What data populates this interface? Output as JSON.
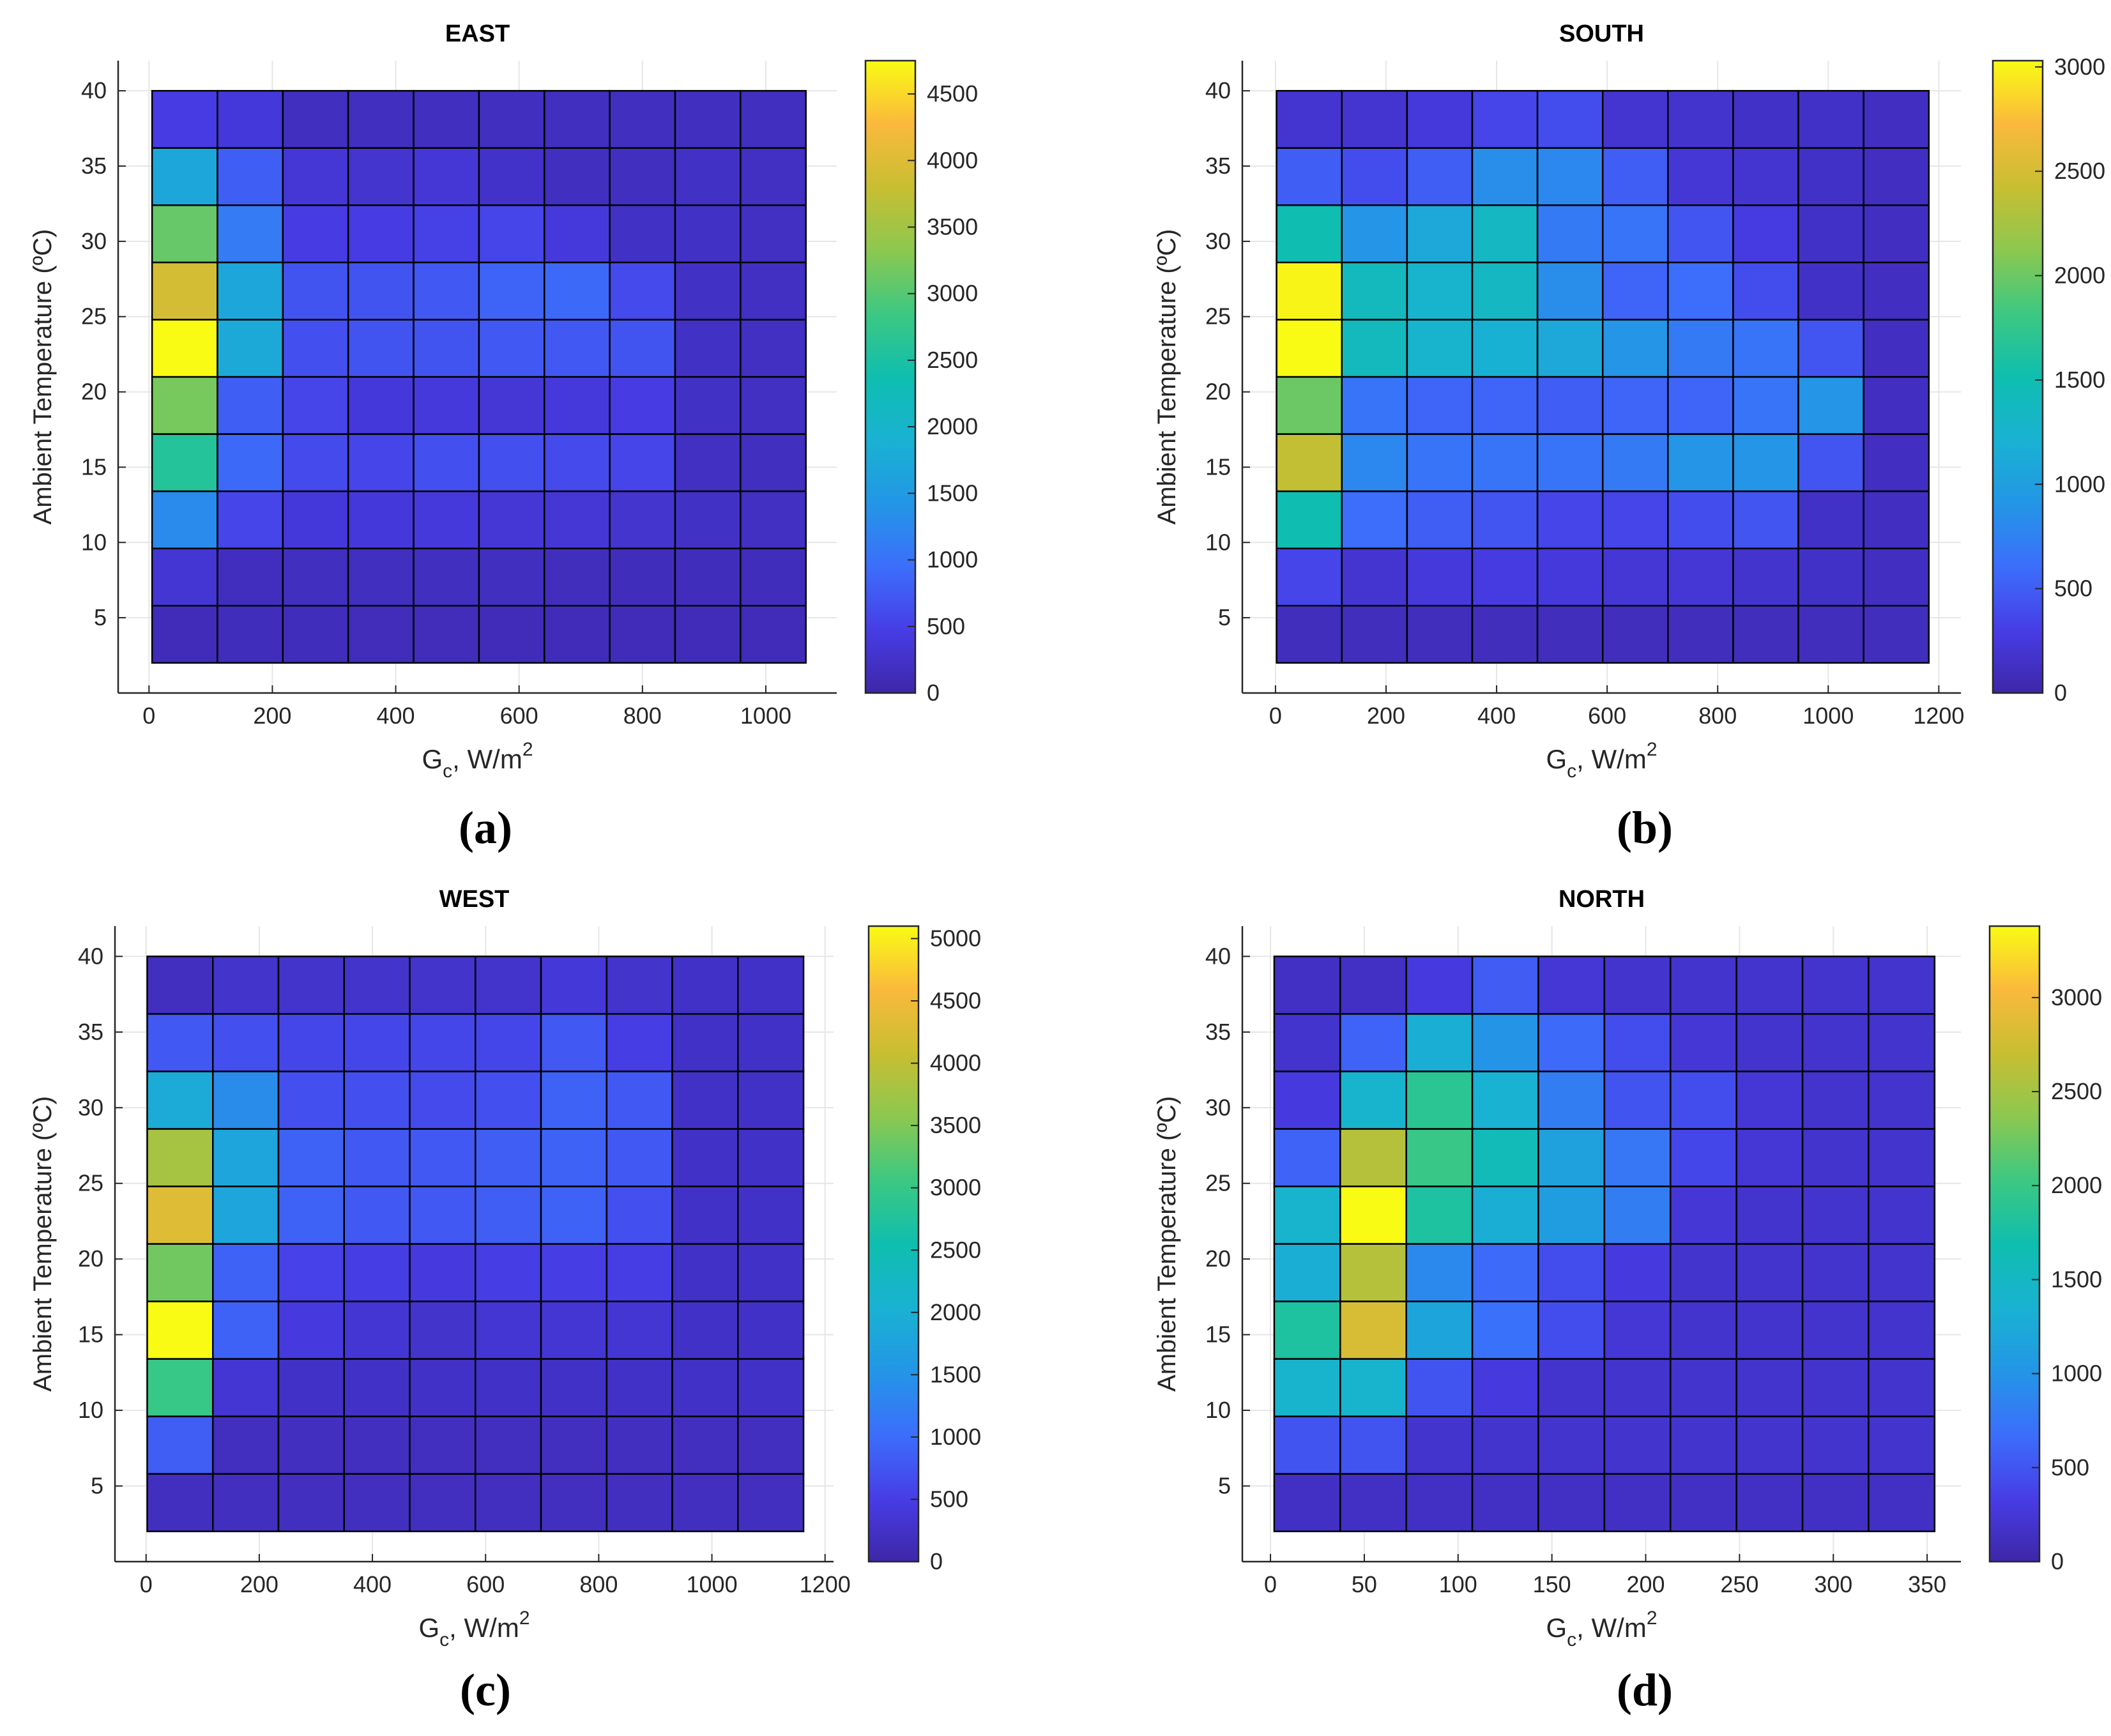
{
  "figure": {
    "panels": [
      "(a)",
      "(b)",
      "(c)",
      "(d)"
    ]
  },
  "chart_data": [
    {
      "type": "heatmap",
      "title": "EAST",
      "xlabel": "G_c, W/m^2",
      "xlabel_parts": {
        "main": "G",
        "sub": "c",
        "mid": ", W/m",
        "sup": "2"
      },
      "ylabel": "Ambient Temperature (ºC)",
      "x_edges": [
        5,
        111,
        217,
        323,
        429,
        535,
        641,
        747,
        853,
        959,
        1065
      ],
      "y_edges": [
        2,
        5.8,
        9.6,
        13.4,
        17.2,
        21,
        24.8,
        28.6,
        32.4,
        36.2,
        40
      ],
      "xlim": [
        -50,
        1115
      ],
      "ylim": [
        0,
        42
      ],
      "xticks": [
        0,
        200,
        400,
        600,
        800,
        1000
      ],
      "yticks": [
        5,
        10,
        15,
        20,
        25,
        30,
        35,
        40
      ],
      "colorbar": {
        "min": 0,
        "max": 4750,
        "ticks": [
          0,
          500,
          1000,
          1500,
          2000,
          2500,
          3000,
          3500,
          4000,
          4500
        ]
      },
      "values": [
        [
          120,
          150,
          150,
          140,
          140,
          130,
          130,
          120,
          120,
          120
        ],
        [
          330,
          170,
          180,
          180,
          180,
          180,
          160,
          150,
          150,
          150
        ],
        [
          1300,
          550,
          380,
          380,
          400,
          350,
          350,
          300,
          220,
          200
        ],
        [
          2600,
          900,
          600,
          550,
          650,
          650,
          600,
          550,
          200,
          180
        ],
        [
          3200,
          800,
          550,
          380,
          400,
          350,
          400,
          450,
          220,
          200
        ],
        [
          4750,
          1750,
          650,
          700,
          700,
          750,
          750,
          700,
          220,
          200
        ],
        [
          3900,
          1700,
          700,
          700,
          750,
          850,
          900,
          600,
          220,
          200
        ],
        [
          3100,
          1100,
          450,
          450,
          500,
          550,
          400,
          220,
          220,
          200
        ],
        [
          1700,
          800,
          350,
          300,
          350,
          250,
          180,
          180,
          220,
          200
        ],
        [
          450,
          380,
          180,
          180,
          180,
          180,
          180,
          180,
          180,
          180
        ]
      ]
    },
    {
      "type": "heatmap",
      "title": "SOUTH",
      "xlabel": "G_c, W/m^2",
      "xlabel_parts": {
        "main": "G",
        "sub": "c",
        "mid": ", W/m",
        "sup": "2"
      },
      "ylabel": "Ambient Temperature (ºC)",
      "x_edges": [
        2,
        120,
        238,
        356,
        474,
        592,
        710,
        828,
        946,
        1064,
        1182
      ],
      "y_edges": [
        2,
        5.8,
        9.6,
        13.4,
        17.2,
        21,
        24.8,
        28.6,
        32.4,
        36.2,
        40
      ],
      "xlim": [
        -60,
        1240
      ],
      "ylim": [
        0,
        42
      ],
      "xticks": [
        0,
        200,
        400,
        600,
        800,
        1000,
        1200
      ],
      "yticks": [
        5,
        10,
        15,
        20,
        25,
        30,
        35,
        40
      ],
      "colorbar": {
        "min": 0,
        "max": 3030,
        "ticks": [
          0,
          500,
          1000,
          1500,
          2000,
          2500,
          3000
        ]
      },
      "values": [
        [
          100,
          100,
          100,
          100,
          100,
          100,
          100,
          100,
          100,
          100
        ],
        [
          350,
          200,
          250,
          280,
          250,
          220,
          220,
          180,
          150,
          120
        ],
        [
          1500,
          600,
          500,
          450,
          350,
          350,
          400,
          450,
          150,
          120
        ],
        [
          2400,
          800,
          650,
          650,
          650,
          700,
          900,
          900,
          450,
          120
        ],
        [
          2000,
          650,
          550,
          550,
          500,
          550,
          550,
          650,
          900,
          120
        ],
        [
          3030,
          1400,
          1250,
          1200,
          1100,
          900,
          700,
          650,
          450,
          120
        ],
        [
          3000,
          1400,
          1250,
          1350,
          850,
          550,
          600,
          400,
          150,
          120
        ],
        [
          1500,
          900,
          1100,
          1350,
          700,
          650,
          450,
          280,
          150,
          120
        ],
        [
          500,
          400,
          500,
          850,
          800,
          500,
          220,
          200,
          150,
          120
        ],
        [
          200,
          200,
          250,
          350,
          400,
          200,
          180,
          150,
          150,
          120
        ]
      ]
    },
    {
      "type": "heatmap",
      "title": "WEST",
      "xlabel": "G_c, W/m^2",
      "xlabel_parts": {
        "main": "G",
        "sub": "c",
        "mid": ", W/m",
        "sup": "2"
      },
      "ylabel": "Ambient Temperature (ºC)",
      "x_edges": [
        2,
        118,
        234,
        350,
        466,
        582,
        698,
        814,
        930,
        1046,
        1162
      ],
      "y_edges": [
        2,
        5.8,
        9.6,
        13.4,
        17.2,
        21,
        24.8,
        28.6,
        32.4,
        36.2,
        40
      ],
      "xlim": [
        -55,
        1215
      ],
      "ylim": [
        0,
        42
      ],
      "xticks": [
        0,
        200,
        400,
        600,
        800,
        1000,
        1200
      ],
      "yticks": [
        5,
        10,
        15,
        20,
        25,
        30,
        35,
        40
      ],
      "colorbar": {
        "min": 0,
        "max": 5100,
        "ticks": [
          0,
          500,
          1000,
          1500,
          2000,
          2500,
          3000,
          3500,
          4000,
          4500,
          5000
        ]
      },
      "values": [
        [
          200,
          200,
          200,
          200,
          200,
          200,
          200,
          200,
          200,
          200
        ],
        [
          850,
          200,
          200,
          200,
          200,
          200,
          200,
          200,
          200,
          200
        ],
        [
          3000,
          350,
          250,
          250,
          250,
          250,
          250,
          250,
          250,
          250
        ],
        [
          5100,
          900,
          450,
          350,
          300,
          350,
          350,
          350,
          250,
          250
        ],
        [
          3400,
          900,
          550,
          500,
          450,
          500,
          500,
          500,
          250,
          250
        ],
        [
          4300,
          1800,
          900,
          800,
          800,
          850,
          900,
          700,
          250,
          250
        ],
        [
          3800,
          1800,
          900,
          800,
          800,
          850,
          900,
          800,
          250,
          250
        ],
        [
          1900,
          1400,
          700,
          700,
          650,
          700,
          900,
          800,
          250,
          250
        ],
        [
          800,
          700,
          600,
          600,
          600,
          600,
          800,
          500,
          250,
          250
        ],
        [
          200,
          300,
          300,
          300,
          300,
          300,
          400,
          300,
          250,
          250
        ]
      ]
    },
    {
      "type": "heatmap",
      "title": "NORTH",
      "xlabel": "G_c, W/m^2",
      "xlabel_parts": {
        "main": "G",
        "sub": "c",
        "mid": ", W/m",
        "sup": "2"
      },
      "ylabel": "Ambient Temperature (ºC)",
      "x_edges": [
        2,
        37.2,
        72.4,
        107.6,
        142.8,
        178,
        213.2,
        248.4,
        283.6,
        318.8,
        354
      ],
      "y_edges": [
        2,
        5.8,
        9.6,
        13.4,
        17.2,
        21,
        24.8,
        28.6,
        32.4,
        36.2,
        40
      ],
      "xlim": [
        -15,
        368
      ],
      "ylim": [
        0,
        42
      ],
      "xticks": [
        0,
        50,
        100,
        150,
        200,
        250,
        300,
        350
      ],
      "yticks": [
        5,
        10,
        15,
        20,
        25,
        30,
        35,
        40
      ],
      "colorbar": {
        "min": 0,
        "max": 3380,
        "ticks": [
          0,
          500,
          1000,
          1500,
          2000,
          2500,
          3000
        ]
      },
      "values": [
        [
          150,
          150,
          150,
          150,
          150,
          150,
          150,
          150,
          150,
          150
        ],
        [
          500,
          500,
          200,
          200,
          200,
          200,
          200,
          200,
          200,
          200
        ],
        [
          1400,
          1400,
          500,
          300,
          200,
          200,
          200,
          200,
          200,
          200
        ],
        [
          1800,
          2800,
          1200,
          700,
          450,
          250,
          200,
          200,
          200,
          200
        ],
        [
          1300,
          2600,
          900,
          650,
          450,
          300,
          200,
          200,
          200,
          200
        ],
        [
          1400,
          3380,
          1800,
          1300,
          1100,
          800,
          250,
          200,
          200,
          200
        ],
        [
          600,
          2600,
          2000,
          1600,
          1150,
          750,
          400,
          250,
          200,
          200
        ],
        [
          300,
          1400,
          1900,
          1350,
          800,
          500,
          450,
          250,
          200,
          200
        ],
        [
          200,
          600,
          1300,
          1000,
          650,
          450,
          250,
          200,
          200,
          200
        ],
        [
          150,
          150,
          300,
          550,
          250,
          200,
          200,
          200,
          200,
          200
        ]
      ]
    }
  ]
}
